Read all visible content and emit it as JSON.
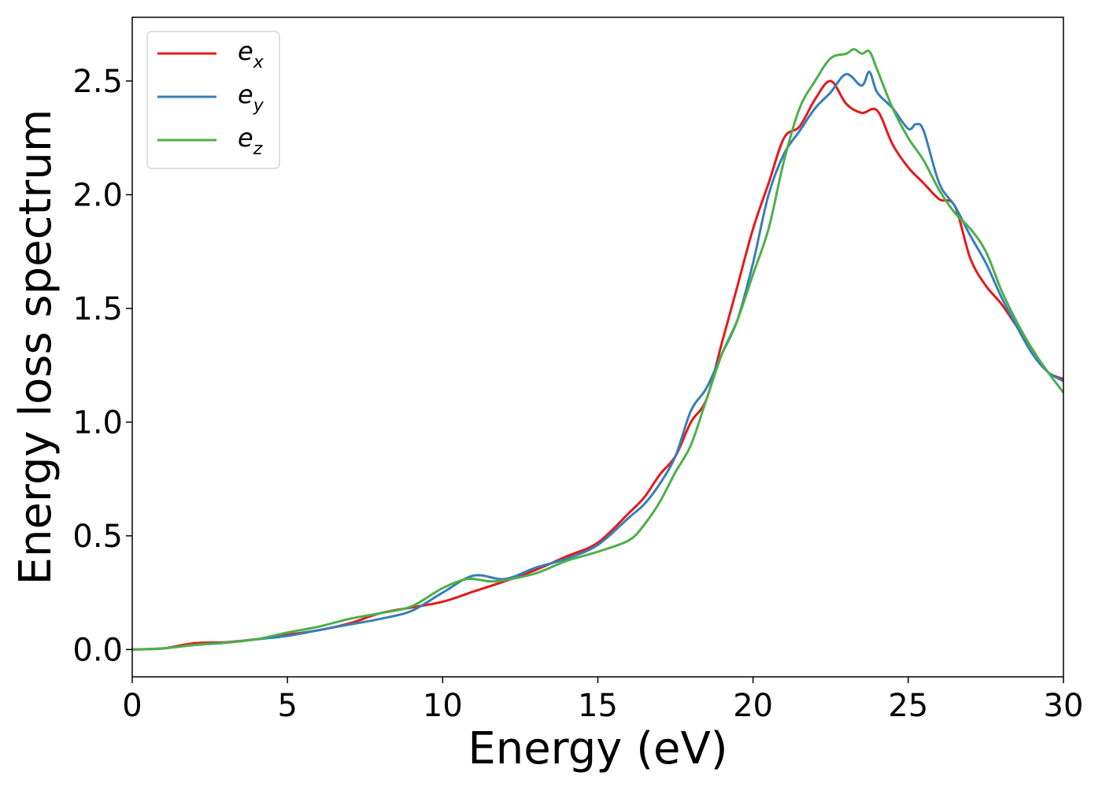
{
  "chart_data": {
    "type": "line",
    "title": "",
    "xlabel": "Energy (eV)",
    "ylabel": "Energy loss spectrum",
    "xlim": [
      0,
      30
    ],
    "ylim": [
      -0.12,
      2.78
    ],
    "x_ticks": [
      0,
      5,
      10,
      15,
      20,
      25,
      30
    ],
    "x_tick_labels": [
      "0",
      "5",
      "10",
      "15",
      "20",
      "25",
      "30"
    ],
    "y_ticks": [
      0.0,
      0.5,
      1.0,
      1.5,
      2.0,
      2.5
    ],
    "y_tick_labels": [
      "0.0",
      "0.5",
      "1.0",
      "1.5",
      "2.0",
      "2.5"
    ],
    "grid": false,
    "legend_position": "top-left",
    "series": [
      {
        "name": "e_x",
        "label_base": "e",
        "label_sub": "x",
        "color": "#e41a1c",
        "points": [
          [
            0,
            0.0
          ],
          [
            1,
            0.005
          ],
          [
            2,
            0.028
          ],
          [
            3,
            0.032
          ],
          [
            4,
            0.045
          ],
          [
            5,
            0.065
          ],
          [
            6,
            0.085
          ],
          [
            7,
            0.115
          ],
          [
            8,
            0.16
          ],
          [
            9,
            0.185
          ],
          [
            10,
            0.21
          ],
          [
            11,
            0.255
          ],
          [
            12,
            0.3
          ],
          [
            13,
            0.35
          ],
          [
            14,
            0.41
          ],
          [
            15,
            0.47
          ],
          [
            16,
            0.6
          ],
          [
            16.5,
            0.67
          ],
          [
            17,
            0.77
          ],
          [
            17.5,
            0.85
          ],
          [
            18,
            1.0
          ],
          [
            18.5,
            1.1
          ],
          [
            19,
            1.35
          ],
          [
            19.5,
            1.6
          ],
          [
            20,
            1.85
          ],
          [
            20.5,
            2.05
          ],
          [
            21,
            2.25
          ],
          [
            21.5,
            2.3
          ],
          [
            22,
            2.42
          ],
          [
            22.5,
            2.5
          ],
          [
            23,
            2.4
          ],
          [
            23.5,
            2.36
          ],
          [
            24,
            2.37
          ],
          [
            24.5,
            2.22
          ],
          [
            25,
            2.12
          ],
          [
            25.5,
            2.05
          ],
          [
            26,
            1.98
          ],
          [
            26.5,
            1.95
          ],
          [
            27,
            1.72
          ],
          [
            27.5,
            1.6
          ],
          [
            28,
            1.52
          ],
          [
            28.5,
            1.42
          ],
          [
            29,
            1.32
          ],
          [
            29.5,
            1.22
          ],
          [
            30,
            1.19
          ]
        ]
      },
      {
        "name": "e_y",
        "label_base": "e",
        "label_sub": "y",
        "color": "#377eb8",
        "points": [
          [
            0,
            0.0
          ],
          [
            1,
            0.005
          ],
          [
            2,
            0.02
          ],
          [
            3,
            0.03
          ],
          [
            4,
            0.045
          ],
          [
            5,
            0.06
          ],
          [
            6,
            0.085
          ],
          [
            7,
            0.11
          ],
          [
            8,
            0.135
          ],
          [
            9,
            0.17
          ],
          [
            10,
            0.25
          ],
          [
            11,
            0.325
          ],
          [
            12,
            0.31
          ],
          [
            13,
            0.36
          ],
          [
            14,
            0.4
          ],
          [
            15,
            0.46
          ],
          [
            16,
            0.58
          ],
          [
            16.5,
            0.64
          ],
          [
            17,
            0.73
          ],
          [
            17.5,
            0.85
          ],
          [
            18,
            1.05
          ],
          [
            18.5,
            1.15
          ],
          [
            19,
            1.3
          ],
          [
            19.5,
            1.45
          ],
          [
            20,
            1.7
          ],
          [
            20.5,
            2.0
          ],
          [
            21,
            2.18
          ],
          [
            21.5,
            2.28
          ],
          [
            22,
            2.38
          ],
          [
            22.5,
            2.45
          ],
          [
            23,
            2.53
          ],
          [
            23.5,
            2.48
          ],
          [
            23.75,
            2.54
          ],
          [
            24,
            2.45
          ],
          [
            24.5,
            2.38
          ],
          [
            25,
            2.29
          ],
          [
            25.25,
            2.31
          ],
          [
            25.5,
            2.28
          ],
          [
            26,
            2.05
          ],
          [
            26.5,
            1.95
          ],
          [
            27,
            1.82
          ],
          [
            27.5,
            1.7
          ],
          [
            28,
            1.55
          ],
          [
            28.5,
            1.42
          ],
          [
            29,
            1.3
          ],
          [
            29.5,
            1.22
          ],
          [
            30,
            1.18
          ]
        ]
      },
      {
        "name": "e_z",
        "label_base": "e",
        "label_sub": "z",
        "color": "#4daf4a",
        "points": [
          [
            0,
            0.0
          ],
          [
            1,
            0.005
          ],
          [
            2,
            0.02
          ],
          [
            3,
            0.03
          ],
          [
            4,
            0.045
          ],
          [
            5,
            0.075
          ],
          [
            6,
            0.1
          ],
          [
            7,
            0.135
          ],
          [
            8,
            0.16
          ],
          [
            9,
            0.19
          ],
          [
            10,
            0.27
          ],
          [
            10.8,
            0.31
          ],
          [
            11.5,
            0.3
          ],
          [
            12,
            0.305
          ],
          [
            13,
            0.335
          ],
          [
            14,
            0.39
          ],
          [
            15,
            0.43
          ],
          [
            16,
            0.48
          ],
          [
            16.5,
            0.55
          ],
          [
            17,
            0.65
          ],
          [
            17.5,
            0.78
          ],
          [
            18,
            0.9
          ],
          [
            18.5,
            1.1
          ],
          [
            19,
            1.3
          ],
          [
            19.5,
            1.45
          ],
          [
            20,
            1.65
          ],
          [
            20.5,
            1.85
          ],
          [
            21,
            2.15
          ],
          [
            21.5,
            2.38
          ],
          [
            22,
            2.5
          ],
          [
            22.5,
            2.6
          ],
          [
            23,
            2.62
          ],
          [
            23.25,
            2.64
          ],
          [
            23.5,
            2.62
          ],
          [
            23.75,
            2.63
          ],
          [
            24,
            2.55
          ],
          [
            24.5,
            2.38
          ],
          [
            25,
            2.25
          ],
          [
            25.5,
            2.15
          ],
          [
            26,
            2.02
          ],
          [
            26.5,
            1.92
          ],
          [
            27,
            1.85
          ],
          [
            27.5,
            1.75
          ],
          [
            28,
            1.58
          ],
          [
            28.5,
            1.44
          ],
          [
            29,
            1.32
          ],
          [
            29.5,
            1.22
          ],
          [
            30,
            1.13
          ]
        ]
      }
    ]
  }
}
